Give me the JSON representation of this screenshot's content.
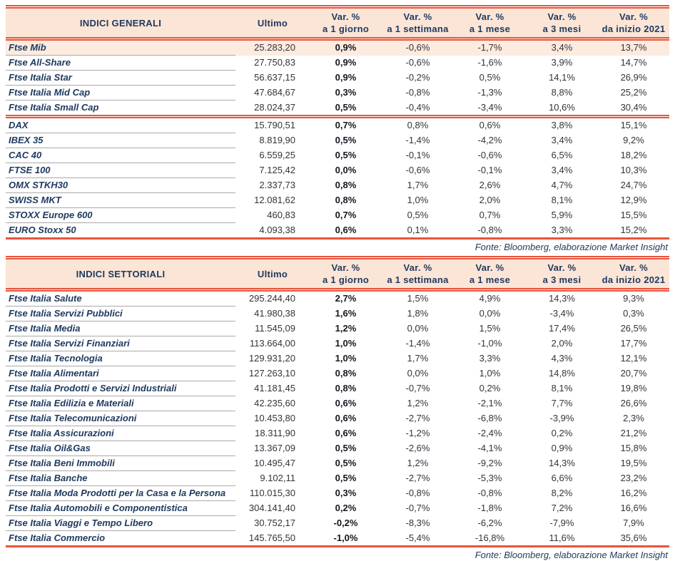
{
  "colors": {
    "accent_red": "#e8543c",
    "header_peach": "#fbe5d6",
    "highlight_row": "#fcebdf",
    "navy_text": "#1f3a60",
    "separator_gray": "#a9a9a9"
  },
  "headers": {
    "ultimo": "Ultimo",
    "vars": [
      {
        "l1": "Var. %",
        "l2": "a 1 giorno"
      },
      {
        "l1": "Var. %",
        "l2": "a 1 settimana"
      },
      {
        "l1": "Var. %",
        "l2": "a 1 mese"
      },
      {
        "l1": "Var. %",
        "l2": "a 3 mesi"
      },
      {
        "l1": "Var. %",
        "l2": "da inizio 2021"
      }
    ]
  },
  "tables": [
    {
      "title": "INDICI GENERALI",
      "source": "Fonte: Bloomberg, elaborazione Market Insight",
      "groups": [
        {
          "rows": [
            {
              "label": "Ftse Mib",
              "ultimo": "25.283,20",
              "vars": [
                "0,9%",
                "-0,6%",
                "-1,7%",
                "3,4%",
                "13,7%"
              ],
              "highlight": true
            },
            {
              "label": "Ftse All-Share",
              "ultimo": "27.750,83",
              "vars": [
                "0,9%",
                "-0,6%",
                "-1,6%",
                "3,9%",
                "14,7%"
              ]
            },
            {
              "label": "Ftse Italia Star",
              "ultimo": "56.637,15",
              "vars": [
                "0,9%",
                "-0,2%",
                "0,5%",
                "14,1%",
                "26,9%"
              ]
            },
            {
              "label": "Ftse Italia Mid Cap",
              "ultimo": "47.684,67",
              "vars": [
                "0,3%",
                "-0,8%",
                "-1,3%",
                "8,8%",
                "25,2%"
              ]
            },
            {
              "label": "Ftse Italia Small Cap",
              "ultimo": "28.024,37",
              "vars": [
                "0,5%",
                "-0,4%",
                "-3,4%",
                "10,6%",
                "30,4%"
              ]
            }
          ]
        },
        {
          "rows": [
            {
              "label": "DAX",
              "ultimo": "15.790,51",
              "vars": [
                "0,7%",
                "0,8%",
                "0,6%",
                "3,8%",
                "15,1%"
              ]
            },
            {
              "label": "IBEX 35",
              "ultimo": "8.819,90",
              "vars": [
                "0,5%",
                "-1,4%",
                "-4,2%",
                "3,4%",
                "9,2%"
              ]
            },
            {
              "label": "CAC 40",
              "ultimo": "6.559,25",
              "vars": [
                "0,5%",
                "-0,1%",
                "-0,6%",
                "6,5%",
                "18,2%"
              ]
            },
            {
              "label": "FTSE 100",
              "ultimo": "7.125,42",
              "vars": [
                "0,0%",
                "-0,6%",
                "-0,1%",
                "3,4%",
                "10,3%"
              ]
            },
            {
              "label": "OMX STKH30",
              "ultimo": "2.337,73",
              "vars": [
                "0,8%",
                "1,7%",
                "2,6%",
                "4,7%",
                "24,7%"
              ]
            },
            {
              "label": "SWISS MKT",
              "ultimo": "12.081,62",
              "vars": [
                "0,8%",
                "1,0%",
                "2,0%",
                "8,1%",
                "12,9%"
              ]
            },
            {
              "label": "STOXX Europe 600",
              "ultimo": "460,83",
              "vars": [
                "0,7%",
                "0,5%",
                "0,7%",
                "5,9%",
                "15,5%"
              ]
            },
            {
              "label": "EURO Stoxx 50",
              "ultimo": "4.093,38",
              "vars": [
                "0,6%",
                "0,1%",
                "-0,8%",
                "3,3%",
                "15,2%"
              ]
            }
          ]
        }
      ]
    },
    {
      "title": "INDICI SETTORIALI",
      "source": "Fonte: Bloomberg, elaborazione Market Insight",
      "groups": [
        {
          "rows": [
            {
              "label": "Ftse Italia Salute",
              "ultimo": "295.244,40",
              "vars": [
                "2,7%",
                "1,5%",
                "4,9%",
                "14,3%",
                "9,3%"
              ]
            },
            {
              "label": "Ftse Italia Servizi Pubblici",
              "ultimo": "41.980,38",
              "vars": [
                "1,6%",
                "1,8%",
                "0,0%",
                "-3,4%",
                "0,3%"
              ]
            },
            {
              "label": "Ftse Italia Media",
              "ultimo": "11.545,09",
              "vars": [
                "1,2%",
                "0,0%",
                "1,5%",
                "17,4%",
                "26,5%"
              ]
            },
            {
              "label": "Ftse Italia Servizi Finanziari",
              "ultimo": "113.664,00",
              "vars": [
                "1,0%",
                "-1,4%",
                "-1,0%",
                "2,0%",
                "17,7%"
              ]
            },
            {
              "label": "Ftse Italia Tecnologia",
              "ultimo": "129.931,20",
              "vars": [
                "1,0%",
                "1,7%",
                "3,3%",
                "4,3%",
                "12,1%"
              ]
            },
            {
              "label": "Ftse Italia Alimentari",
              "ultimo": "127.263,10",
              "vars": [
                "0,8%",
                "0,0%",
                "1,0%",
                "14,8%",
                "20,7%"
              ]
            },
            {
              "label": "Ftse Italia Prodotti e Servizi Industriali",
              "ultimo": "41.181,45",
              "vars": [
                "0,8%",
                "-0,7%",
                "0,2%",
                "8,1%",
                "19,8%"
              ]
            },
            {
              "label": "Ftse Italia Edilizia e Materiali",
              "ultimo": "42.235,60",
              "vars": [
                "0,6%",
                "1,2%",
                "-2,1%",
                "7,7%",
                "26,6%"
              ]
            },
            {
              "label": "Ftse Italia Telecomunicazioni",
              "ultimo": "10.453,80",
              "vars": [
                "0,6%",
                "-2,7%",
                "-6,8%",
                "-3,9%",
                "2,3%"
              ]
            },
            {
              "label": "Ftse Italia Assicurazioni",
              "ultimo": "18.311,90",
              "vars": [
                "0,6%",
                "-1,2%",
                "-2,4%",
                "0,2%",
                "21,2%"
              ]
            },
            {
              "label": "Ftse Italia Oil&Gas",
              "ultimo": "13.367,09",
              "vars": [
                "0,5%",
                "-2,6%",
                "-4,1%",
                "0,9%",
                "15,8%"
              ]
            },
            {
              "label": "Ftse Italia Beni Immobili",
              "ultimo": "10.495,47",
              "vars": [
                "0,5%",
                "1,2%",
                "-9,2%",
                "14,3%",
                "19,5%"
              ]
            },
            {
              "label": "Ftse Italia Banche",
              "ultimo": "9.102,11",
              "vars": [
                "0,5%",
                "-2,7%",
                "-5,3%",
                "6,6%",
                "23,2%"
              ]
            },
            {
              "label": "Ftse Italia Moda Prodotti per la Casa e la Persona",
              "ultimo": "110.015,30",
              "vars": [
                "0,3%",
                "-0,8%",
                "-0,8%",
                "8,2%",
                "16,2%"
              ]
            },
            {
              "label": "Ftse Italia Automobili e Componentistica",
              "ultimo": "304.141,40",
              "vars": [
                "0,2%",
                "-0,7%",
                "-1,8%",
                "7,2%",
                "16,6%"
              ]
            },
            {
              "label": "Ftse Italia Viaggi e Tempo Libero",
              "ultimo": "30.752,17",
              "vars": [
                "-0,2%",
                "-8,3%",
                "-6,2%",
                "-7,9%",
                "7,9%"
              ]
            },
            {
              "label": "Ftse Italia Commercio",
              "ultimo": "145.765,50",
              "vars": [
                "-1,0%",
                "-5,4%",
                "-16,8%",
                "11,6%",
                "35,6%"
              ]
            }
          ]
        }
      ]
    }
  ]
}
